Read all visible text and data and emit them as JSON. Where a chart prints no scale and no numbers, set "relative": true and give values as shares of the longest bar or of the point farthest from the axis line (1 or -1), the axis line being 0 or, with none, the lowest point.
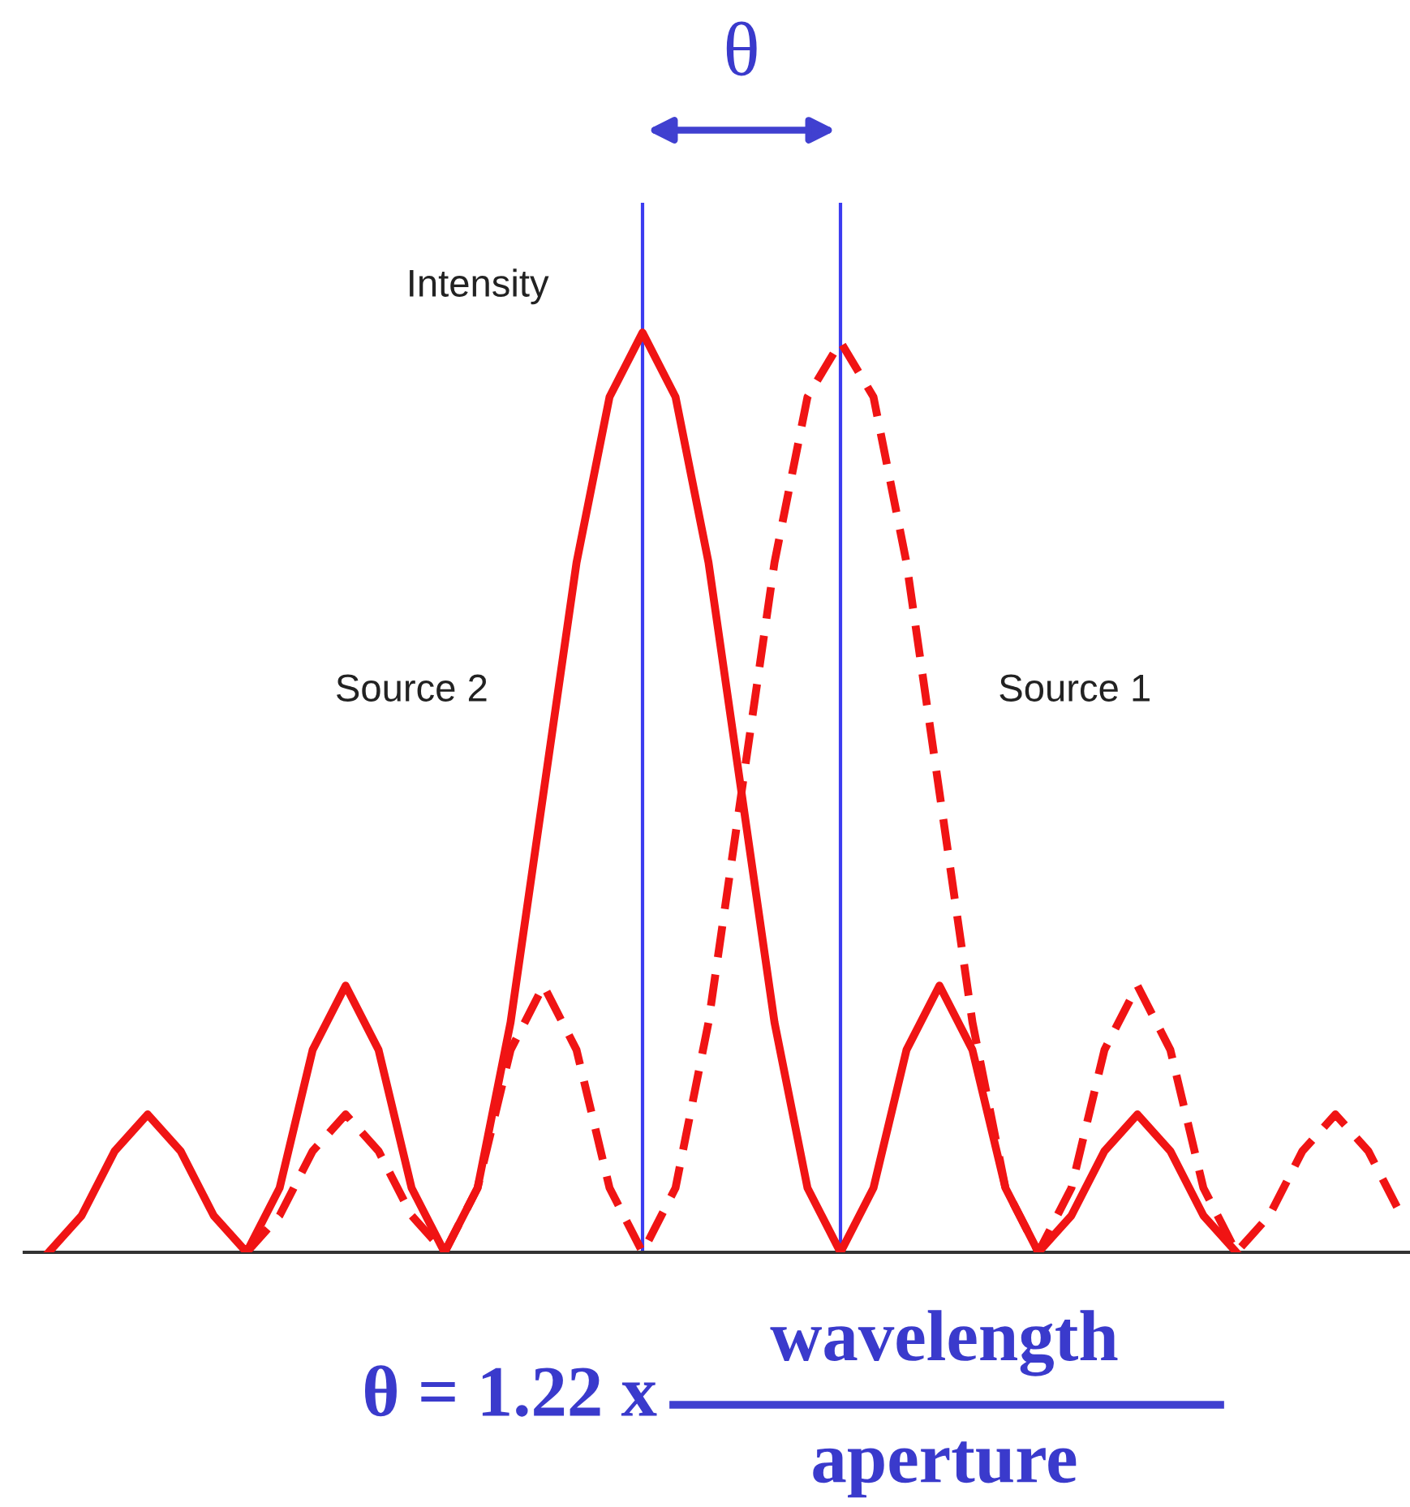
{
  "chart_data": {
    "type": "line",
    "relative": true,
    "ylabel": "Intensity",
    "tick_labels": false,
    "legend": false,
    "marker": "none",
    "categories": [
      null,
      null,
      null,
      null,
      null,
      null,
      null,
      null,
      null,
      null,
      null,
      null,
      null,
      null,
      null,
      null,
      null,
      null,
      null,
      null,
      null,
      null,
      null,
      null,
      null,
      null,
      null,
      null,
      null,
      null,
      null,
      null,
      null,
      null,
      null,
      null,
      null,
      null,
      null,
      null,
      null,
      null
    ],
    "series": [
      {
        "name": "Source 2",
        "color": "#f01414",
        "line_style": "solid",
        "values": [
          0,
          0.04,
          0.11,
          0.15,
          0.11,
          0.04,
          0,
          0.07,
          0.22,
          0.29,
          0.22,
          0.07,
          0,
          0.07,
          0.25,
          0.5,
          0.75,
          0.93,
          1,
          0.93,
          0.75,
          0.5,
          0.25,
          0.07,
          0,
          0.07,
          0.22,
          0.29,
          0.22,
          0.07,
          0,
          0.04,
          0.11,
          0.15,
          0.11,
          0.04,
          0,
          null,
          null,
          null,
          null,
          null
        ]
      },
      {
        "name": "Source 1",
        "color": "#f01414",
        "line_style": "dashed",
        "values": [
          null,
          null,
          null,
          null,
          null,
          null,
          0,
          0.04,
          0.11,
          0.15,
          0.11,
          0.04,
          0,
          0.07,
          0.22,
          0.29,
          0.22,
          0.07,
          0,
          0.07,
          0.25,
          0.5,
          0.75,
          0.93,
          0.99,
          0.93,
          0.75,
          0.5,
          0.25,
          0.07,
          0,
          0.07,
          0.22,
          0.29,
          0.22,
          0.07,
          0,
          0.04,
          0.11,
          0.15,
          0.11,
          0.04
        ]
      }
    ],
    "annotations": [
      "θ",
      "θ = 1.22 x",
      "wavelength",
      "aperture"
    ]
  }
}
